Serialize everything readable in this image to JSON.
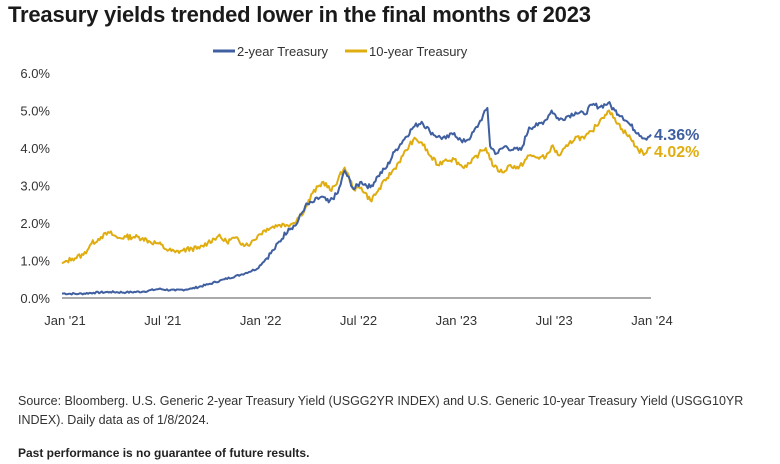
{
  "title": "Treasury yields trended lower in the final months of 2023",
  "source": "Source: Bloomberg. U.S. Generic 2-year Treasury Yield (USGG2YR INDEX) and U.S. Generic 10-year Treasury Yield (USGG10YR INDEX). Daily data as of 1/8/2024.",
  "disclaimer": "Past performance is no guarantee of future results.",
  "colors": {
    "two_year": "#3f5fa0",
    "ten_year": "#e0ad10",
    "axis": "#555555"
  },
  "chart_data": {
    "type": "line",
    "title": "Treasury yields trended lower in the final months of 2023",
    "xlabel": "",
    "ylabel": "",
    "x_ticks": [
      "Jan '21",
      "Jul '21",
      "Jan '22",
      "Jul '22",
      "Jan '23",
      "Jul '23",
      "Jan '24"
    ],
    "y_ticks": [
      "0.0%",
      "1.0%",
      "2.0%",
      "3.0%",
      "4.0%",
      "5.0%",
      "6.0%"
    ],
    "ylim": [
      0,
      6
    ],
    "xlim": [
      "2021-01-01",
      "2024-01-08"
    ],
    "grid": false,
    "legend": "top-center",
    "series": [
      {
        "name": "2-year Treasury",
        "color": "#3f5fa0",
        "end_label": "4.36%",
        "points": [
          [
            "2021-01-01",
            0.12
          ],
          [
            "2021-02-01",
            0.11
          ],
          [
            "2021-03-01",
            0.14
          ],
          [
            "2021-04-01",
            0.16
          ],
          [
            "2021-05-01",
            0.15
          ],
          [
            "2021-06-01",
            0.17
          ],
          [
            "2021-07-01",
            0.24
          ],
          [
            "2021-08-01",
            0.2
          ],
          [
            "2021-09-01",
            0.25
          ],
          [
            "2021-10-01",
            0.36
          ],
          [
            "2021-11-01",
            0.5
          ],
          [
            "2021-12-01",
            0.62
          ],
          [
            "2022-01-01",
            0.78
          ],
          [
            "2022-02-01",
            1.28
          ],
          [
            "2022-03-01",
            1.85
          ],
          [
            "2022-03-15",
            1.95
          ],
          [
            "2022-04-01",
            2.45
          ],
          [
            "2022-04-15",
            2.55
          ],
          [
            "2022-05-01",
            2.7
          ],
          [
            "2022-05-15",
            2.55
          ],
          [
            "2022-06-01",
            2.8
          ],
          [
            "2022-06-14",
            3.4
          ],
          [
            "2022-07-01",
            2.9
          ],
          [
            "2022-07-15",
            3.1
          ],
          [
            "2022-08-01",
            2.95
          ],
          [
            "2022-08-15",
            3.25
          ],
          [
            "2022-09-01",
            3.5
          ],
          [
            "2022-09-15",
            3.9
          ],
          [
            "2022-10-01",
            4.2
          ],
          [
            "2022-10-20",
            4.55
          ],
          [
            "2022-11-05",
            4.7
          ],
          [
            "2022-11-20",
            4.45
          ],
          [
            "2022-12-05",
            4.3
          ],
          [
            "2022-12-20",
            4.25
          ],
          [
            "2023-01-05",
            4.4
          ],
          [
            "2023-01-20",
            4.15
          ],
          [
            "2023-02-05",
            4.3
          ],
          [
            "2023-02-20",
            4.65
          ],
          [
            "2023-03-08",
            5.07
          ],
          [
            "2023-03-13",
            4.05
          ],
          [
            "2023-03-25",
            3.85
          ],
          [
            "2023-04-10",
            4.05
          ],
          [
            "2023-04-25",
            3.95
          ],
          [
            "2023-05-10",
            3.95
          ],
          [
            "2023-05-25",
            4.55
          ],
          [
            "2023-06-10",
            4.6
          ],
          [
            "2023-06-25",
            4.75
          ],
          [
            "2023-07-06",
            5.0
          ],
          [
            "2023-07-20",
            4.75
          ],
          [
            "2023-08-05",
            4.85
          ],
          [
            "2023-08-20",
            4.95
          ],
          [
            "2023-09-05",
            4.9
          ],
          [
            "2023-09-20",
            5.15
          ],
          [
            "2023-10-05",
            5.1
          ],
          [
            "2023-10-20",
            5.2
          ],
          [
            "2023-11-01",
            5.0
          ],
          [
            "2023-11-15",
            4.85
          ],
          [
            "2023-12-01",
            4.6
          ],
          [
            "2023-12-15",
            4.4
          ],
          [
            "2023-12-28",
            4.25
          ],
          [
            "2024-01-08",
            4.36
          ]
        ]
      },
      {
        "name": "10-year Treasury",
        "color": "#e0ad10",
        "end_label": "4.02%",
        "points": [
          [
            "2021-01-01",
            0.92
          ],
          [
            "2021-01-20",
            1.05
          ],
          [
            "2021-02-10",
            1.15
          ],
          [
            "2021-02-25",
            1.45
          ],
          [
            "2021-03-15",
            1.63
          ],
          [
            "2021-03-31",
            1.74
          ],
          [
            "2021-04-15",
            1.6
          ],
          [
            "2021-05-01",
            1.63
          ],
          [
            "2021-05-15",
            1.63
          ],
          [
            "2021-06-01",
            1.6
          ],
          [
            "2021-06-15",
            1.5
          ],
          [
            "2021-07-01",
            1.45
          ],
          [
            "2021-07-15",
            1.3
          ],
          [
            "2021-08-01",
            1.22
          ],
          [
            "2021-08-15",
            1.27
          ],
          [
            "2021-09-01",
            1.32
          ],
          [
            "2021-09-15",
            1.32
          ],
          [
            "2021-10-01",
            1.48
          ],
          [
            "2021-10-20",
            1.65
          ],
          [
            "2021-11-05",
            1.5
          ],
          [
            "2021-11-20",
            1.6
          ],
          [
            "2021-12-05",
            1.45
          ],
          [
            "2021-12-20",
            1.45
          ],
          [
            "2022-01-05",
            1.7
          ],
          [
            "2022-01-20",
            1.85
          ],
          [
            "2022-02-10",
            1.95
          ],
          [
            "2022-02-25",
            1.95
          ],
          [
            "2022-03-10",
            2.0
          ],
          [
            "2022-03-31",
            2.35
          ],
          [
            "2022-04-15",
            2.8
          ],
          [
            "2022-05-05",
            3.1
          ],
          [
            "2022-05-20",
            2.85
          ],
          [
            "2022-06-14",
            3.48
          ],
          [
            "2022-07-01",
            2.9
          ],
          [
            "2022-07-15",
            2.95
          ],
          [
            "2022-08-01",
            2.6
          ],
          [
            "2022-08-15",
            2.85
          ],
          [
            "2022-09-01",
            3.2
          ],
          [
            "2022-09-15",
            3.45
          ],
          [
            "2022-10-01",
            3.8
          ],
          [
            "2022-10-20",
            4.22
          ],
          [
            "2022-11-05",
            4.15
          ],
          [
            "2022-11-20",
            3.8
          ],
          [
            "2022-12-05",
            3.55
          ],
          [
            "2022-12-20",
            3.7
          ],
          [
            "2023-01-05",
            3.7
          ],
          [
            "2023-01-20",
            3.5
          ],
          [
            "2023-02-05",
            3.6
          ],
          [
            "2023-02-20",
            3.85
          ],
          [
            "2023-03-05",
            4.0
          ],
          [
            "2023-03-20",
            3.5
          ],
          [
            "2023-04-05",
            3.35
          ],
          [
            "2023-04-20",
            3.55
          ],
          [
            "2023-05-05",
            3.45
          ],
          [
            "2023-05-25",
            3.8
          ],
          [
            "2023-06-10",
            3.75
          ],
          [
            "2023-06-25",
            3.75
          ],
          [
            "2023-07-06",
            4.05
          ],
          [
            "2023-07-20",
            3.8
          ],
          [
            "2023-08-05",
            4.05
          ],
          [
            "2023-08-20",
            4.3
          ],
          [
            "2023-09-05",
            4.25
          ],
          [
            "2023-09-20",
            4.45
          ],
          [
            "2023-10-05",
            4.75
          ],
          [
            "2023-10-19",
            4.98
          ],
          [
            "2023-11-01",
            4.8
          ],
          [
            "2023-11-15",
            4.5
          ],
          [
            "2023-12-01",
            4.25
          ],
          [
            "2023-12-15",
            3.95
          ],
          [
            "2023-12-28",
            3.85
          ],
          [
            "2024-01-08",
            4.02
          ]
        ]
      }
    ]
  }
}
